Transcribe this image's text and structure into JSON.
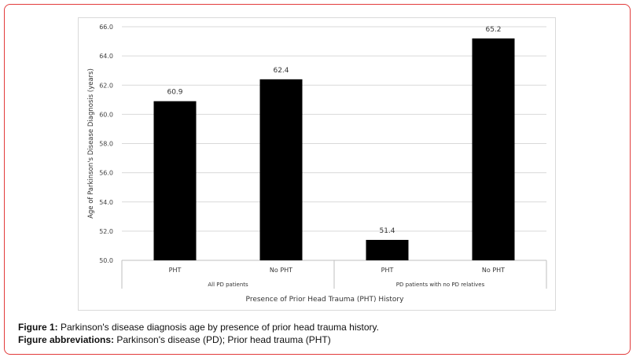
{
  "chart_data": {
    "type": "bar",
    "groups": [
      {
        "label": "All PD patients",
        "categories": [
          "PHT",
          "No PHT"
        ],
        "values": [
          60.9,
          62.4
        ]
      },
      {
        "label": "PD patients with no PD relatives",
        "categories": [
          "PHT",
          "No PHT"
        ],
        "values": [
          51.4,
          65.2
        ]
      }
    ],
    "data_labels": [
      "60.9",
      "62.4",
      "51.4",
      "65.2"
    ],
    "xlabel": "Presence of Prior Head Trauma (PHT) History",
    "ylabel": "Age of Parkinson's Disease Diagnosis (years)",
    "ylim": [
      50,
      66
    ],
    "yticks": [
      "50.0",
      "52.0",
      "54.0",
      "56.0",
      "58.0",
      "60.0",
      "62.0",
      "64.0",
      "66.0"
    ],
    "grid": true,
    "bar_color": "#000000"
  },
  "caption": {
    "line1_bold": "Figure 1:",
    "line1_text": " Parkinson's disease diagnosis age by presence of prior head trauma history.",
    "line2_bold": "Figure abbreviations:",
    "line2_text": " Parkinson's disease (PD); Prior head trauma (PHT)"
  },
  "colors": {
    "frame_border": "#e23b3b",
    "grid": "#d9d9d9",
    "axis": "#bfbfbf"
  }
}
